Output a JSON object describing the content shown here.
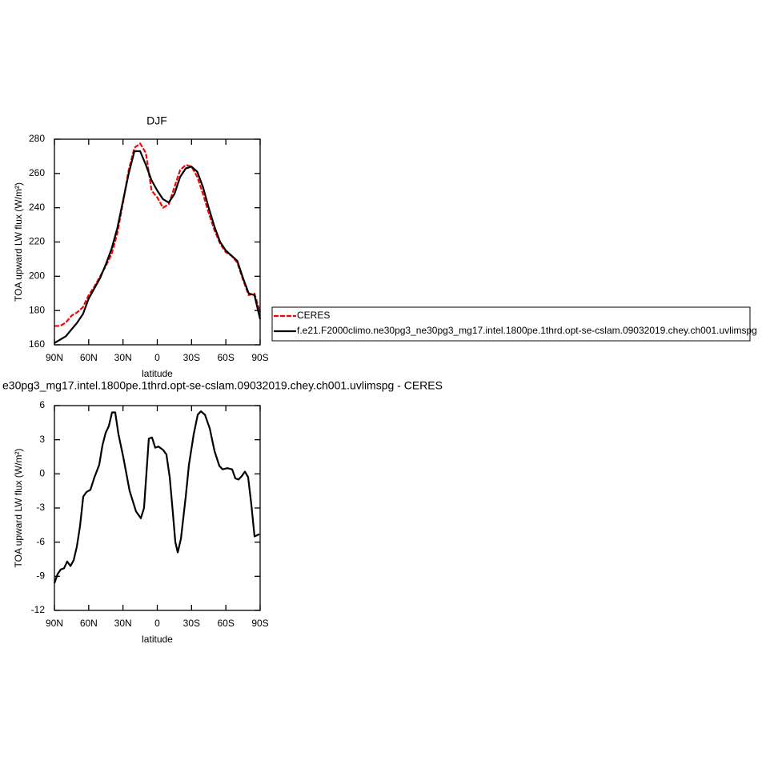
{
  "chart_data": [
    {
      "type": "line",
      "title": "DJF",
      "xlabel": "latitude",
      "ylabel": "TOA upward LW flux (W/m²)",
      "x": [
        90,
        85,
        80,
        75,
        70,
        65,
        60,
        55,
        50,
        45,
        40,
        35,
        30,
        25,
        20,
        15,
        10,
        5,
        0,
        -5,
        -10,
        -15,
        -20,
        -25,
        -30,
        -35,
        -40,
        -45,
        -50,
        -55,
        -60,
        -65,
        -70,
        -75,
        -80,
        -85,
        -90
      ],
      "series": [
        {
          "name": "CERES",
          "color": "#ff0000",
          "line_style": "dashed",
          "values": [
            171,
            171,
            173,
            177,
            179,
            182,
            189,
            194,
            200,
            206,
            213,
            225,
            243,
            262,
            275,
            277.5,
            272,
            250,
            246,
            240,
            242,
            252,
            262,
            265,
            264,
            258,
            248,
            237,
            227,
            219,
            214,
            212,
            208,
            198,
            189,
            190,
            179
          ]
        },
        {
          "name": "f.e21.F2000climo.ne30pg3_ne30pg3_mg17.intel.1800pe.1thrd.opt-se-cslam.09032019.chey.ch001.uvlimspg",
          "color": "#000000",
          "line_style": "solid",
          "values": [
            161,
            163,
            165,
            169,
            173,
            178,
            187,
            193,
            199,
            207,
            216,
            228,
            244,
            260,
            273,
            273,
            265,
            256,
            250,
            245,
            243,
            248,
            258,
            263,
            264,
            261,
            252,
            240,
            229,
            220,
            215,
            212,
            209,
            199,
            190,
            189,
            175
          ]
        }
      ],
      "xlim": [
        90,
        -90
      ],
      "xticks": [
        {
          "value": 90,
          "label": "90N"
        },
        {
          "value": 60,
          "label": "60N"
        },
        {
          "value": 30,
          "label": "30N"
        },
        0,
        {
          "value": -30,
          "label": "30S"
        },
        {
          "value": -60,
          "label": "60S"
        },
        {
          "value": -90,
          "label": "90S"
        }
      ],
      "ylim": [
        160,
        280
      ],
      "yticks": [
        160,
        180,
        200,
        220,
        240,
        260,
        280
      ]
    },
    {
      "type": "line",
      "title": "e30pg3_mg17.intel.1800pe.1thrd.opt-se-cslam.09032019.chey.ch001.uvlimspg - CERES",
      "xlabel": "latitude",
      "ylabel": "TOA upward LW flux (W/m²)",
      "x": [
        90,
        87.2,
        84.4,
        81.6,
        78.8,
        76,
        73.2,
        70.4,
        67.6,
        64.8,
        62,
        58.5,
        55,
        50.8,
        48,
        45.2,
        42.4,
        39.6,
        36.8,
        34,
        29.8,
        24.2,
        18.6,
        14.4,
        11.6,
        7.4,
        4.6,
        1.8,
        -1,
        -5.2,
        -8,
        -10.9,
        -13.7,
        -15.8,
        -17.9,
        -20.7,
        -24.9,
        -27.7,
        -31.9,
        -35.4,
        -38.2,
        -41.7,
        -45.9,
        -50.1,
        -54.3,
        -57.1,
        -61.3,
        -65.5,
        -68.3,
        -71.1,
        -73.9,
        -76.7,
        -79.5,
        -82.3,
        -85.1,
        -89.3
      ],
      "values": [
        -9.6,
        -8.8,
        -8.4,
        -8.3,
        -7.7,
        -8.1,
        -7.6,
        -6.4,
        -4.6,
        -2.0,
        -1.6,
        -1.4,
        -0.3,
        0.8,
        2.5,
        3.6,
        4.2,
        5.4,
        5.4,
        3.5,
        1.5,
        -1.5,
        -3.3,
        -3.9,
        -3.0,
        3.1,
        3.2,
        2.3,
        2.4,
        2.1,
        1.7,
        -0.3,
        -3.5,
        -6,
        -6.9,
        -5.7,
        -2,
        0.8,
        3.5,
        5.2,
        5.5,
        5.2,
        4.0,
        2.0,
        0.7,
        0.4,
        0.5,
        0.4,
        -0.4,
        -0.5,
        -0.2,
        0.2,
        -0.3,
        -2.7,
        -5.5,
        -5.3
      ],
      "color": "#000000",
      "xlim": [
        90,
        -90
      ],
      "xticks": [
        {
          "value": 90,
          "label": "90N"
        },
        {
          "value": 60,
          "label": "60N"
        },
        {
          "value": 30,
          "label": "30N"
        },
        0,
        {
          "value": -30,
          "label": "30S"
        },
        {
          "value": -60,
          "label": "60S"
        },
        {
          "value": -90,
          "label": "90S"
        }
      ],
      "ylim": [
        -12,
        6
      ],
      "yticks": [
        -12,
        -9,
        -6,
        -3,
        0,
        3,
        6
      ]
    }
  ]
}
